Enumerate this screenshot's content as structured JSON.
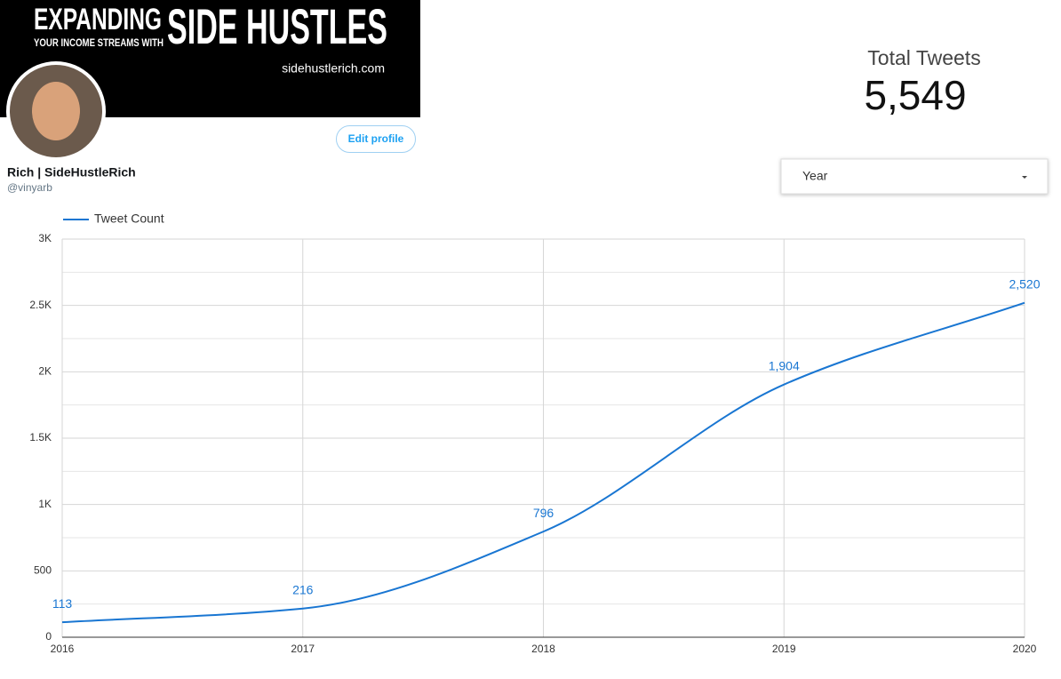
{
  "profile": {
    "banner_title_1": "EXPANDING",
    "banner_subtitle": "YOUR INCOME STREAMS WITH",
    "banner_title_2": "SIDE HUSTLES",
    "banner_url": "sidehustlerich.com",
    "button": "Edit profile",
    "name": "Rich | SideHustleRich",
    "handle": "@vinyarb"
  },
  "scorecard": {
    "label": "Total Tweets",
    "value": "5,549"
  },
  "filter": {
    "label": "Year"
  },
  "chart_data": {
    "type": "line",
    "x": [
      2016,
      2017,
      2018,
      2019,
      2020
    ],
    "series": [
      {
        "name": "Tweet Count",
        "color": "#1976d2",
        "values": [
          113,
          216,
          796,
          1904,
          2520
        ],
        "value_labels": [
          "113",
          "216",
          "796",
          "1,904",
          "2,520"
        ]
      }
    ],
    "xlim": [
      2016,
      2020
    ],
    "xticks": [
      2016,
      2017,
      2018,
      2019,
      2020
    ],
    "ylim": [
      0,
      3000
    ],
    "yticks": [
      0,
      500,
      {
        "value": 1000,
        "label": "1K"
      },
      {
        "value": 1500,
        "label": "1.5K"
      },
      {
        "value": 2000,
        "label": "2K"
      },
      {
        "value": 2500,
        "label": "2.5K"
      },
      {
        "value": 3000,
        "label": "3K"
      }
    ],
    "y_minor_ticks": [
      250,
      750,
      1250,
      1750,
      2250,
      2750
    ],
    "grid": true,
    "legend": "top-left",
    "smooth": true
  }
}
